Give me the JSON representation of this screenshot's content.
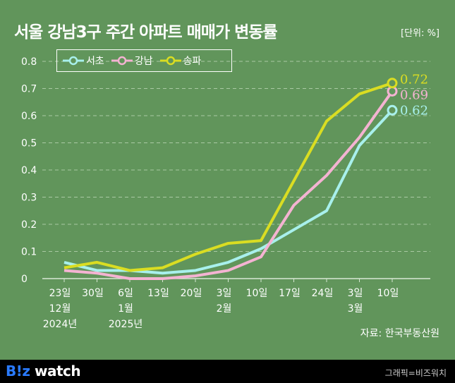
{
  "title": "서울 강남3구 주간 아파트 매매가 변동률",
  "unit": "[단위: %]",
  "source": "자료: 한국부동산원",
  "footer": {
    "logo_prefix": "B!z",
    "logo_suffix": " watch",
    "credit": "그래픽=비즈워치"
  },
  "chart_data": {
    "type": "line",
    "x_labels": [
      [
        "23일",
        "12월",
        "2024년"
      ],
      [
        "30일"
      ],
      [
        "6일",
        "1월",
        "2025년"
      ],
      [
        "13일"
      ],
      [
        "20일"
      ],
      [
        "3일",
        "2월"
      ],
      [
        "10일"
      ],
      [
        "17일"
      ],
      [
        "24일"
      ],
      [
        "3일",
        "3월"
      ],
      [
        "10일"
      ]
    ],
    "ylim": [
      0,
      0.8
    ],
    "yticks": [
      "0",
      "0.1",
      "0.2",
      "0.3",
      "0.4",
      "0.5",
      "0.6",
      "0.7",
      "0.8"
    ],
    "grid": true,
    "legend_position": "top-left",
    "series": [
      {
        "name": "서초",
        "color": "#a8f0ec",
        "values": [
          0.06,
          0.03,
          0.03,
          0.02,
          0.03,
          0.06,
          0.11,
          0.18,
          0.25,
          0.49,
          0.62
        ],
        "end_label": "0.62"
      },
      {
        "name": "강남",
        "color": "#f4b3d2",
        "values": [
          0.03,
          0.02,
          0.0,
          0.0,
          0.01,
          0.03,
          0.08,
          0.27,
          0.38,
          0.52,
          0.69
        ],
        "end_label": "0.69"
      },
      {
        "name": "송파",
        "color": "#dadd22",
        "values": [
          0.04,
          0.06,
          0.03,
          0.04,
          0.09,
          0.13,
          0.14,
          0.36,
          0.58,
          0.68,
          0.72
        ],
        "end_label": "0.72"
      }
    ]
  }
}
